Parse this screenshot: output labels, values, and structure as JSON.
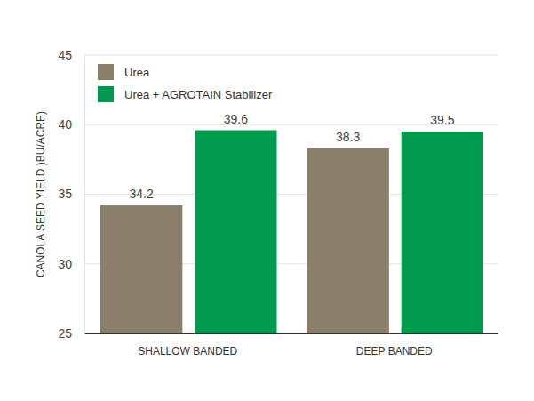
{
  "chart_data": {
    "type": "bar",
    "y_label": "CANOLA SEED YIELD )BU/ACRE)",
    "categories": [
      "SHALLOW BANDED",
      "DEEP BANDED"
    ],
    "series": [
      {
        "name": "Urea",
        "color": "#8c7f6a",
        "values": [
          34.2,
          38.3
        ]
      },
      {
        "name": "Urea + AGROTAIN Stabilizer",
        "color": "#009a4e",
        "values": [
          39.6,
          39.5
        ]
      }
    ],
    "ylim": [
      25,
      45
    ],
    "yticks": [
      25,
      30,
      35,
      40,
      45
    ],
    "grid": true,
    "legend": "upper left",
    "data_labels": true
  }
}
